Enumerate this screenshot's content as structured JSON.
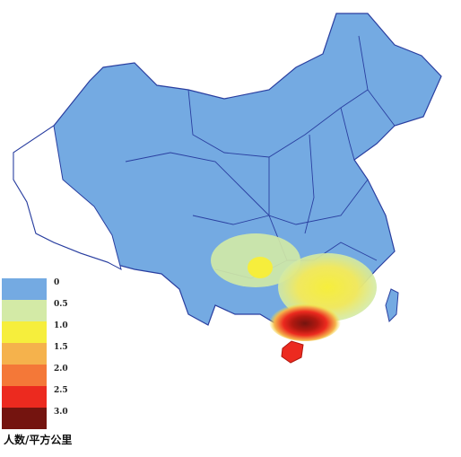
{
  "legend": {
    "title": "人数/平方公里",
    "items": [
      {
        "label": "0",
        "color": "#74aae2"
      },
      {
        "label": "0.5",
        "color": "#d3eaa6"
      },
      {
        "label": "1.0",
        "color": "#f6ee3c"
      },
      {
        "label": "1.5",
        "color": "#f5b24c"
      },
      {
        "label": "2.0",
        "color": "#f47838"
      },
      {
        "label": "2.5",
        "color": "#ec2a1f"
      },
      {
        "label": "3.0",
        "color": "#74140f"
      }
    ]
  }
}
